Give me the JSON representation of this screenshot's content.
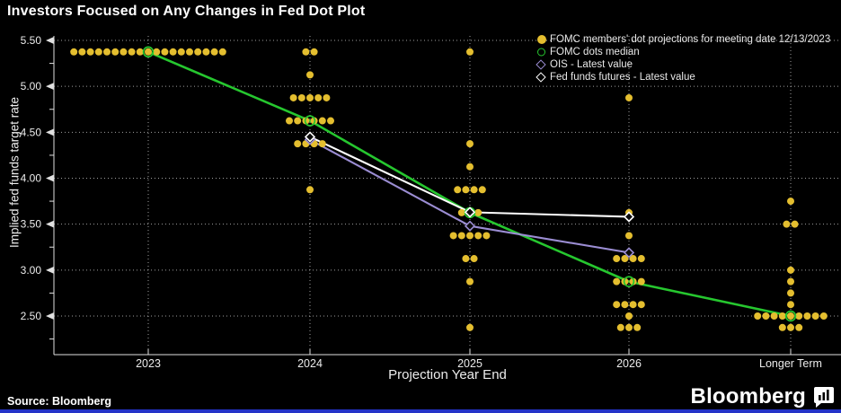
{
  "title": "Investors Focused on Any Changes in Fed Dot Plot",
  "source": "Source: Bloomberg",
  "brand": {
    "wordmark": "Bloomberg"
  },
  "colors": {
    "background": "#000000",
    "dots_yellow": "#E4BE2F",
    "median_green": "#26C72F",
    "ois_purple": "#9B8DD3",
    "futures_white": "#FFFFFF",
    "grid": "#C9C9C9",
    "bottom_strip_blue": "#2433C8"
  },
  "legend": [
    {
      "label": "FOMC members' dot projections for meeting date 12/13/2023",
      "marker": "filled-circle",
      "color": "#E4BE2F"
    },
    {
      "label": "FOMC dots median",
      "marker": "open-circle",
      "color": "#26C72F"
    },
    {
      "label": "OIS - Latest value",
      "marker": "open-diamond",
      "color": "#9B8DD3"
    },
    {
      "label": "Fed funds futures - Latest value",
      "marker": "open-diamond",
      "color": "#FFFFFF"
    }
  ],
  "chart_data": {
    "type": "scatter",
    "title": "Investors Focused on Any Changes in Fed Dot Plot",
    "xlabel": "Projection Year End",
    "ylabel": "Implied fed funds target rate",
    "categories": [
      "2023",
      "2024",
      "2025",
      "2026",
      "Longer Term"
    ],
    "ylim": [
      2.1,
      5.55
    ],
    "yticks": [
      {
        "value": 5.5,
        "label": "5.50"
      },
      {
        "value": 5.0,
        "label": "5.00"
      },
      {
        "value": 4.5,
        "label": "4.50"
      },
      {
        "value": 4.0,
        "label": "4.00"
      },
      {
        "value": 3.5,
        "label": "3.50"
      },
      {
        "value": 3.0,
        "label": "3.00"
      },
      {
        "value": 2.5,
        "label": "2.50"
      }
    ],
    "grid": "dotted horizontal and vertical",
    "legend_position": "top-right",
    "series": [
      {
        "name": "FOMC members' dot projections for meeting date 12/13/2023",
        "type": "dots",
        "color": "#E4BE2F",
        "distributions": [
          {
            "category": "2023",
            "rows": [
              {
                "rate": 5.375,
                "count": 19
              }
            ]
          },
          {
            "category": "2024",
            "rows": [
              {
                "rate": 5.375,
                "count": 2
              },
              {
                "rate": 5.125,
                "count": 1
              },
              {
                "rate": 4.875,
                "count": 5
              },
              {
                "rate": 4.625,
                "count": 6
              },
              {
                "rate": 4.375,
                "count": 4
              },
              {
                "rate": 3.875,
                "count": 1
              }
            ]
          },
          {
            "category": "2025",
            "rows": [
              {
                "rate": 5.375,
                "count": 1
              },
              {
                "rate": 4.375,
                "count": 1
              },
              {
                "rate": 4.125,
                "count": 1
              },
              {
                "rate": 3.875,
                "count": 4
              },
              {
                "rate": 3.625,
                "count": 3
              },
              {
                "rate": 3.375,
                "count": 5
              },
              {
                "rate": 3.125,
                "count": 2
              },
              {
                "rate": 2.875,
                "count": 1
              },
              {
                "rate": 2.375,
                "count": 1
              }
            ]
          },
          {
            "category": "2026",
            "rows": [
              {
                "rate": 4.875,
                "count": 1
              },
              {
                "rate": 3.625,
                "count": 1
              },
              {
                "rate": 3.375,
                "count": 1
              },
              {
                "rate": 3.125,
                "count": 4
              },
              {
                "rate": 2.875,
                "count": 4
              },
              {
                "rate": 2.625,
                "count": 4
              },
              {
                "rate": 2.5,
                "count": 1
              },
              {
                "rate": 2.375,
                "count": 3
              }
            ]
          },
          {
            "category": "Longer Term",
            "rows": [
              {
                "rate": 3.75,
                "count": 1
              },
              {
                "rate": 3.5,
                "count": 2
              },
              {
                "rate": 3.0,
                "count": 1
              },
              {
                "rate": 2.875,
                "count": 1
              },
              {
                "rate": 2.75,
                "count": 1
              },
              {
                "rate": 2.625,
                "count": 1
              },
              {
                "rate": 2.5,
                "count": 9
              },
              {
                "rate": 2.375,
                "count": 3
              }
            ]
          }
        ]
      },
      {
        "name": "FOMC dots median",
        "type": "line",
        "marker": "open-circle",
        "color": "#26C72F",
        "x": [
          "2023",
          "2024",
          "2025",
          "2026",
          "Longer Term"
        ],
        "values": [
          5.375,
          4.625,
          3.625,
          2.875,
          2.5
        ]
      },
      {
        "name": "OIS - Latest value",
        "type": "line",
        "marker": "open-diamond",
        "color": "#9B8DD3",
        "x": [
          "2024",
          "2025",
          "2026"
        ],
        "values": [
          4.42,
          3.48,
          3.19
        ]
      },
      {
        "name": "Fed funds futures - Latest value",
        "type": "line",
        "marker": "open-diamond",
        "color": "#FFFFFF",
        "x": [
          "2024",
          "2025",
          "2026"
        ],
        "values": [
          4.45,
          3.63,
          3.58
        ]
      }
    ]
  }
}
